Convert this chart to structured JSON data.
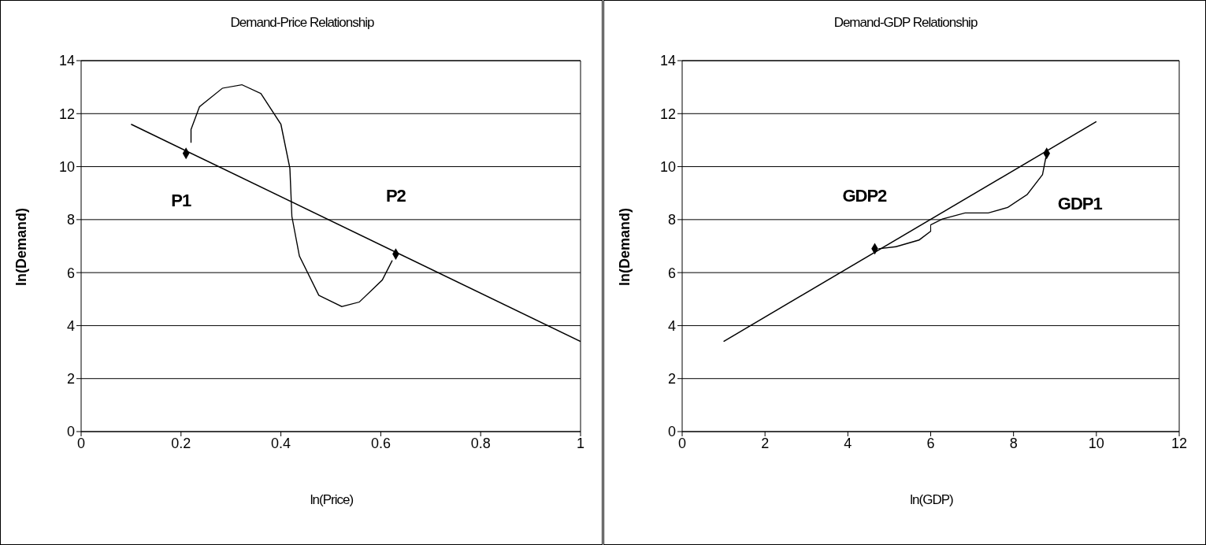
{
  "chart_data": [
    {
      "type": "line",
      "title": "Demand-Price Relationship",
      "xlabel": "ln(Price)",
      "ylabel": "ln(Demand)",
      "xlim": [
        0,
        1
      ],
      "xticks": [
        0,
        0.2,
        0.4,
        0.6,
        0.8,
        1
      ],
      "ylim": [
        0,
        14
      ],
      "yticks": [
        0,
        2,
        4,
        6,
        8,
        10,
        12,
        14
      ],
      "grid": "y",
      "legend": false,
      "series": [
        {
          "color": "#000000",
          "x": [
            0.1,
            1
          ],
          "values": [
            11.6,
            3.4
          ],
          "marker": "none"
        },
        {
          "type": "scatter",
          "color": "#000000",
          "x": [
            0.21,
            0.63
          ],
          "values": [
            10.5,
            6.7
          ],
          "marker": "diamond"
        }
      ],
      "annotations": [
        "P1",
        "P2"
      ]
    },
    {
      "type": "line",
      "title": "Demand-GDP Relationship",
      "xlabel": "ln(GDP)",
      "ylabel": "ln(Demand)",
      "xlim": [
        0,
        12
      ],
      "xticks": [
        0,
        2,
        4,
        6,
        8,
        10,
        12
      ],
      "ylim": [
        0,
        14
      ],
      "yticks": [
        0,
        2,
        4,
        6,
        8,
        10,
        12,
        14
      ],
      "grid": "y",
      "legend": false,
      "series": [
        {
          "color": "#000000",
          "x": [
            1,
            10
          ],
          "values": [
            3.4,
            11.7
          ],
          "marker": "none"
        },
        {
          "type": "scatter",
          "color": "#000000",
          "x": [
            4.65,
            8.8
          ],
          "values": [
            6.9,
            10.5
          ],
          "marker": "diamond"
        }
      ],
      "annotations": [
        "GDP2",
        "GDP1"
      ]
    }
  ]
}
